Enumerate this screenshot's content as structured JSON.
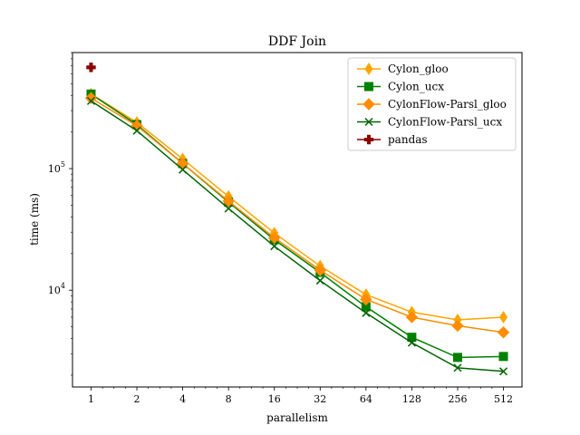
{
  "chart_data": {
    "type": "line",
    "title": "DDF Join",
    "xlabel": "parallelism",
    "ylabel": "time (ms)",
    "x_scale": "log2",
    "y_scale": "log",
    "ylim": [
      1600,
      900000
    ],
    "x": [
      1,
      2,
      4,
      8,
      16,
      32,
      64,
      128,
      256,
      512
    ],
    "x_tick_labels": [
      "1",
      "2",
      "4",
      "8",
      "16",
      "32",
      "64",
      "128",
      "256",
      "512"
    ],
    "y_ticks": [
      {
        "value": 10000,
        "base": "10",
        "exp": "4"
      },
      {
        "value": 100000,
        "base": "10",
        "exp": "5"
      }
    ],
    "grid": false,
    "legend_position": "top-right",
    "series": [
      {
        "name": "Cylon_gloo",
        "color": "#FFA500",
        "marker": "thin-diamond",
        "values": [
          410000,
          240000,
          120000,
          59000,
          29500,
          15800,
          9200,
          6600,
          5700,
          6000
        ]
      },
      {
        "name": "Cylon_ucx",
        "color": "#008000",
        "marker": "square",
        "values": [
          410000,
          230000,
          110000,
          53000,
          26000,
          14000,
          7300,
          4100,
          2800,
          2850
        ]
      },
      {
        "name": "CylonFlow-Parsl_gloo",
        "color": "#FF8C00",
        "marker": "diamond",
        "values": [
          380000,
          225000,
          110000,
          54000,
          27000,
          14600,
          8400,
          6000,
          5100,
          4500
        ]
      },
      {
        "name": "CylonFlow-Parsl_ucx",
        "color": "#006400",
        "marker": "x",
        "values": [
          360000,
          205000,
          98000,
          47000,
          23000,
          12000,
          6500,
          3700,
          2300,
          2150
        ]
      },
      {
        "name": "pandas",
        "color": "#8B0000",
        "marker": "plus-filled",
        "values": [
          680000,
          null,
          null,
          null,
          null,
          null,
          null,
          null,
          null,
          null
        ]
      }
    ]
  }
}
